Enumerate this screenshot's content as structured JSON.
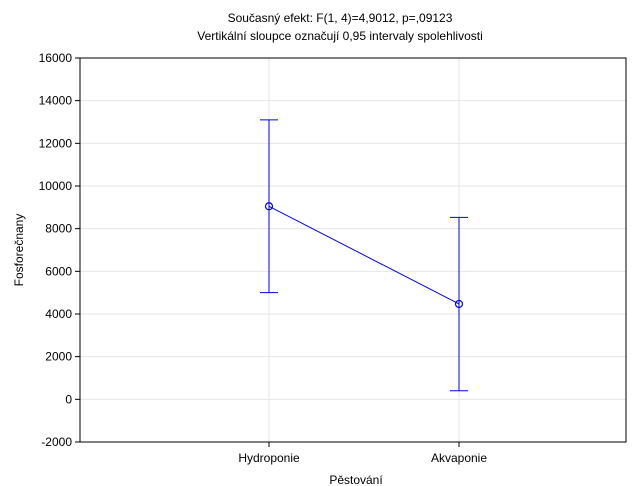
{
  "chart_data": {
    "type": "line",
    "title": "Současný efekt: F(1, 4)=4,9012, p=,09123",
    "subtitle": "Vertikální sloupce označují 0,95 intervaly spolehlivosti",
    "xlabel": "Pěstování",
    "ylabel": "Fosforečnany",
    "categories": [
      "Hydroponie",
      "Akvaponie"
    ],
    "series": [
      {
        "values": [
          9050,
          4470
        ],
        "ci_lower": [
          5000,
          400
        ],
        "ci_upper": [
          13100,
          8530
        ]
      }
    ],
    "ylim": [
      -2000,
      16000
    ],
    "yticks": [
      -2000,
      0,
      2000,
      4000,
      6000,
      8000,
      10000,
      12000,
      14000,
      16000
    ],
    "ytick_labels": [
      "-2000",
      "0",
      "2000",
      "4000",
      "6000",
      "8000",
      "10000",
      "12000",
      "14000",
      "16000"
    ],
    "grid": true,
    "line_color": "#0000ff",
    "grid_color": "#e6e6e6"
  }
}
